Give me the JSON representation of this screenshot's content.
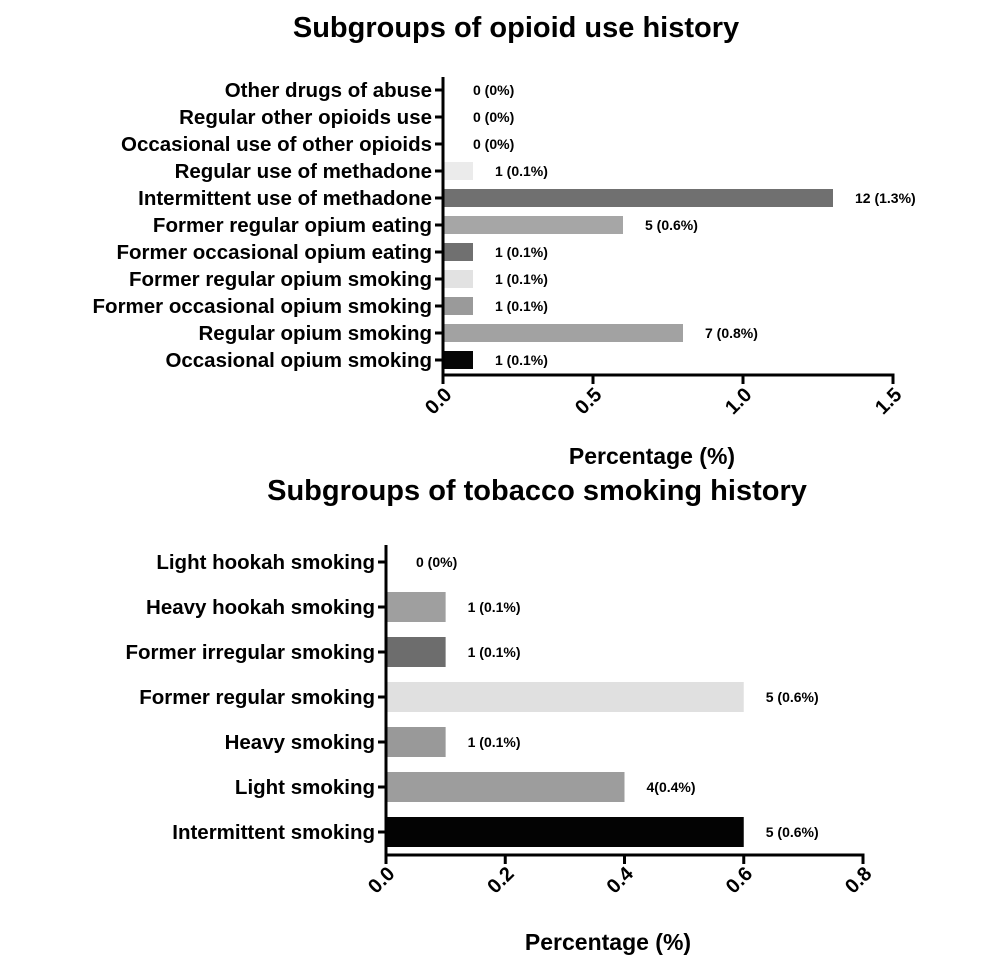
{
  "chart_data": [
    {
      "type": "bar",
      "orientation": "horizontal",
      "title": "Subgroups of opioid use history",
      "xlabel": "Percentage (%)",
      "ylabel": "",
      "xlim": [
        0,
        1.5
      ],
      "xticks": [
        "0.0",
        "0.5",
        "1.0",
        "1.5"
      ],
      "grid": false,
      "categories": [
        "Other drugs of abuse",
        "Regular other opioids use",
        "Occasional use of other opioids",
        "Regular use of methadone",
        "Intermittent use of methadone",
        "Former regular opium eating",
        "Former occasional opium eating",
        "Former regular opium smoking",
        "Former occasional opium smoking",
        "Regular opium smoking",
        "Occasional opium smoking"
      ],
      "values": [
        0,
        0,
        0,
        0.1,
        1.3,
        0.6,
        0.1,
        0.1,
        0.1,
        0.8,
        0.1
      ],
      "data_labels": [
        "0 (0%)",
        "0 (0%)",
        "0 (0%)",
        "1 (0.1%)",
        "12 (1.3%)",
        "5 (0.6%)",
        "1 (0.1%)",
        "1 (0.1%)",
        "1 (0.1%)",
        "7 (0.8%)",
        "1 (0.1%)"
      ],
      "colors": [
        "#ffffff",
        "#ffffff",
        "#ffffff",
        "#ebebeb",
        "#707070",
        "#a6a6a6",
        "#707070",
        "#e2e2e2",
        "#9a9a9a",
        "#a2a2a2",
        "#050505"
      ]
    },
    {
      "type": "bar",
      "orientation": "horizontal",
      "title": "Subgroups of tobacco smoking  history",
      "xlabel": "Percentage (%)",
      "ylabel": "",
      "xlim": [
        0,
        0.8
      ],
      "xticks": [
        "0.0",
        "0.2",
        "0.4",
        "0.6",
        "0.8"
      ],
      "grid": false,
      "categories": [
        "Light hookah smoking",
        "Heavy hookah smoking",
        "Former irregular smoking",
        "Former regular smoking",
        "Heavy smoking",
        "Light smoking",
        "Intermittent  smoking"
      ],
      "values": [
        0,
        0.1,
        0.1,
        0.6,
        0.1,
        0.4,
        0.6
      ],
      "data_labels": [
        "0 (0%)",
        "1 (0.1%)",
        "1 (0.1%)",
        "5 (0.6%)",
        "1 (0.1%)",
        "4(0.4%)",
        "5 (0.6%)"
      ],
      "colors": [
        "#ffffff",
        "#9f9f9f",
        "#6d6d6d",
        "#e0e0e0",
        "#999999",
        "#9d9d9d",
        "#030303"
      ]
    }
  ]
}
